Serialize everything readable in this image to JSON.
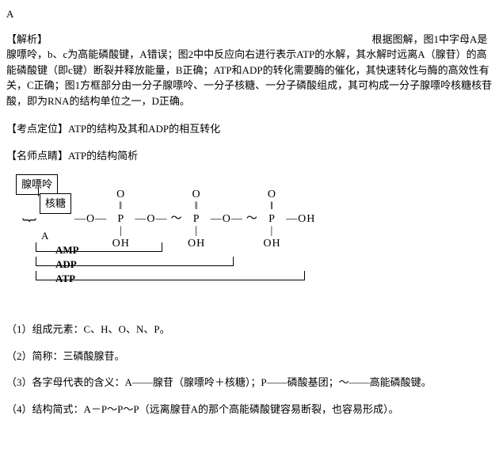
{
  "header": "A",
  "analysis_label": "【解析】",
  "analysis_text": "根据图解，图1中字母A是腺嘌呤，b、c为高能磷酸键，A错误；图2中中反应向右进行表示ATP的水解，其水解时远离A（腺苷）的高能磷酸键（即c键）断裂并释放能量，B正确；ATP和ADP的转化需要酶的催化，其快速转化与酶的高效性有关，C正确；图1方框部分由一分子腺嘌呤、一分子核糖、一分子磷酸组成，其可构成一分子腺嘌呤核糖核苷酸，即为RNA的结构单位之一，D正确。",
  "kaodian_label": "【考点定位】",
  "kaodian_text": "ATP的结构及其和ADP的相互转化",
  "mingshi_label": "【名师点睛】",
  "mingshi_text": "ATP的结构简析",
  "diagram": {
    "adenine": "腺嘌呤",
    "ribose": "核糖",
    "chain_o": "—O—",
    "chain_tilde": "～",
    "p_o": "O",
    "p_dbond": "‖",
    "p_p": "P",
    "p_line": "|",
    "p_oh": "OH",
    "end_oh": "—OH",
    "brace_a": "A",
    "amp": "AMP",
    "adp": "ADP",
    "atp": "ATP"
  },
  "points": {
    "p1": "（1）组成元素：C、H、O、N、P。",
    "p2": "（2）简称：三磷酸腺苷。",
    "p3": "（3）各字母代表的含义：A——腺苷（腺嘌呤＋核糖）；P——磷酸基团；～——高能磷酸键。",
    "p4": "（4）结构简式：A－P～P～P（远离腺苷A的那个高能磷酸键容易断裂，也容易形成）。"
  }
}
